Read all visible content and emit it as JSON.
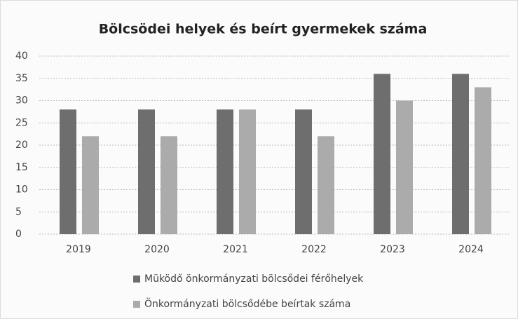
{
  "chart_data": {
    "type": "bar",
    "title": "Bölcsödei helyek és beírt gyermekek száma",
    "categories": [
      "2019",
      "2020",
      "2021",
      "2022",
      "2023",
      "2024"
    ],
    "series": [
      {
        "name": "Müködő önkormányzati bölcsődei férőhelyek",
        "color": "#6e6e6e",
        "values": [
          28,
          28,
          28,
          28,
          36,
          36
        ]
      },
      {
        "name": "Önkormányzati bölcsődébe beírtak száma",
        "color": "#ababab",
        "values": [
          22,
          22,
          28,
          22,
          30,
          33
        ]
      }
    ],
    "ylim": [
      0,
      40
    ],
    "yticks": [
      0,
      5,
      10,
      15,
      20,
      25,
      30,
      35,
      40
    ],
    "grid": true,
    "legend": "bottom"
  }
}
